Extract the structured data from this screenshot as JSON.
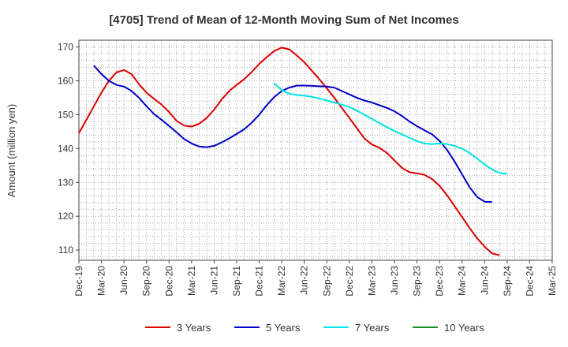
{
  "chart_data": {
    "type": "line",
    "title": "[4705]  Trend of Mean of 12-Month Moving Sum of Net Incomes",
    "xlabel": "",
    "ylabel": "Amount (million yen)",
    "ylim": [
      107,
      172
    ],
    "yticks": [
      110,
      120,
      130,
      140,
      150,
      160,
      170
    ],
    "xlim": [
      "Dec-19",
      "Mar-25"
    ],
    "xticks": [
      "Dec-19",
      "Mar-20",
      "Jun-20",
      "Sep-20",
      "Dec-20",
      "Mar-21",
      "Jun-21",
      "Sep-21",
      "Dec-21",
      "Mar-22",
      "Jun-22",
      "Sep-22",
      "Dec-22",
      "Mar-23",
      "Jun-23",
      "Sep-23",
      "Dec-23",
      "Mar-24",
      "Jun-24",
      "Sep-24",
      "Dec-24",
      "Mar-25"
    ],
    "grid": true,
    "legend_position": "bottom",
    "series": [
      {
        "name": "3 Years",
        "color": "#dd0000",
        "points": [
          [
            "Dec-19",
            144.5
          ],
          [
            "Jan-20",
            148.5
          ],
          [
            "Feb-20",
            152.5
          ],
          [
            "Mar-20",
            156.5
          ],
          [
            "Apr-20",
            160
          ],
          [
            "May-20",
            162.5
          ],
          [
            "Jun-20",
            163.2
          ],
          [
            "Jul-20",
            162
          ],
          [
            "Aug-20",
            159
          ],
          [
            "Sep-20",
            156.5
          ],
          [
            "Oct-20",
            154.7
          ],
          [
            "Nov-20",
            153
          ],
          [
            "Dec-20",
            150.8
          ],
          [
            "Jan-21",
            148.2
          ],
          [
            "Feb-21",
            146.8
          ],
          [
            "Mar-21",
            146.5
          ],
          [
            "Apr-21",
            147.3
          ],
          [
            "May-21",
            149
          ],
          [
            "Jun-21",
            151.5
          ],
          [
            "Jul-21",
            154.5
          ],
          [
            "Aug-21",
            157
          ],
          [
            "Sep-21",
            158.8
          ],
          [
            "Oct-21",
            160.5
          ],
          [
            "Nov-21",
            162.6
          ],
          [
            "Dec-21",
            165
          ],
          [
            "Jan-22",
            167
          ],
          [
            "Feb-22",
            168.8
          ],
          [
            "Mar-22",
            169.8
          ],
          [
            "Apr-22",
            169.3
          ],
          [
            "May-22",
            167.5
          ],
          [
            "Jun-22",
            165.5
          ],
          [
            "Jul-22",
            163
          ],
          [
            "Aug-22",
            160.5
          ],
          [
            "Sep-22",
            157.8
          ],
          [
            "Oct-22",
            155
          ],
          [
            "Nov-22",
            152
          ],
          [
            "Dec-22",
            149
          ],
          [
            "Jan-23",
            146
          ],
          [
            "Feb-23",
            143
          ],
          [
            "Mar-23",
            141.2
          ],
          [
            "Apr-23",
            140.2
          ],
          [
            "May-23",
            138.7
          ],
          [
            "Jun-23",
            136.5
          ],
          [
            "Jul-23",
            134.3
          ],
          [
            "Aug-23",
            133
          ],
          [
            "Sep-23",
            132.7
          ],
          [
            "Oct-23",
            132.2
          ],
          [
            "Nov-23",
            131
          ],
          [
            "Dec-23",
            129
          ],
          [
            "Jan-24",
            126.2
          ],
          [
            "Feb-24",
            123
          ],
          [
            "Mar-24",
            119.8
          ],
          [
            "Apr-24",
            116.5
          ],
          [
            "May-24",
            113.5
          ],
          [
            "Jun-24",
            111
          ],
          [
            "Jul-24",
            109
          ],
          [
            "Aug-24",
            108.5
          ]
        ]
      },
      {
        "name": "5 Years",
        "color": "#0000cc",
        "points": [
          [
            "Feb-20",
            164.5
          ],
          [
            "Mar-20",
            162
          ],
          [
            "Apr-20",
            160
          ],
          [
            "May-20",
            158.8
          ],
          [
            "Jun-20",
            158.3
          ],
          [
            "Jul-20",
            157
          ],
          [
            "Aug-20",
            155
          ],
          [
            "Sep-20",
            152.5
          ],
          [
            "Oct-20",
            150.2
          ],
          [
            "Nov-20",
            148.5
          ],
          [
            "Dec-20",
            146.7
          ],
          [
            "Jan-21",
            144.8
          ],
          [
            "Feb-21",
            142.8
          ],
          [
            "Mar-21",
            141.5
          ],
          [
            "Apr-21",
            140.6
          ],
          [
            "May-21",
            140.4
          ],
          [
            "Jun-21",
            140.8
          ],
          [
            "Jul-21",
            141.8
          ],
          [
            "Aug-21",
            143
          ],
          [
            "Sep-21",
            144.3
          ],
          [
            "Oct-21",
            145.7
          ],
          [
            "Nov-21",
            147.6
          ],
          [
            "Dec-21",
            150
          ],
          [
            "Jan-22",
            152.8
          ],
          [
            "Feb-22",
            155.2
          ],
          [
            "Mar-22",
            157
          ],
          [
            "Apr-22",
            158
          ],
          [
            "May-22",
            158.6
          ],
          [
            "Jun-22",
            158.6
          ],
          [
            "Jul-22",
            158.5
          ],
          [
            "Aug-22",
            158.4
          ],
          [
            "Sep-22",
            158.3
          ],
          [
            "Oct-22",
            158
          ],
          [
            "Nov-22",
            157
          ],
          [
            "Dec-22",
            156
          ],
          [
            "Jan-23",
            155
          ],
          [
            "Feb-23",
            154.2
          ],
          [
            "Mar-23",
            153.6
          ],
          [
            "Apr-23",
            152.8
          ],
          [
            "May-23",
            152
          ],
          [
            "Jun-23",
            151
          ],
          [
            "Jul-23",
            149.6
          ],
          [
            "Aug-23",
            148
          ],
          [
            "Sep-23",
            146.6
          ],
          [
            "Oct-23",
            145.4
          ],
          [
            "Nov-23",
            144.2
          ],
          [
            "Dec-23",
            142.3
          ],
          [
            "Jan-24",
            139.6
          ],
          [
            "Feb-24",
            136.2
          ],
          [
            "Mar-24",
            132.4
          ],
          [
            "Apr-24",
            128.6
          ],
          [
            "May-24",
            125.7
          ],
          [
            "Jun-24",
            124.3
          ],
          [
            "Jul-24",
            124.2
          ]
        ]
      },
      {
        "name": "7 Years",
        "color": "#00e5e5",
        "points": [
          [
            "Feb-22",
            159.2
          ],
          [
            "Mar-22",
            157.3
          ],
          [
            "Apr-22",
            156.2
          ],
          [
            "May-22",
            155.8
          ],
          [
            "Jun-22",
            155.6
          ],
          [
            "Jul-22",
            155.3
          ],
          [
            "Aug-22",
            154.8
          ],
          [
            "Sep-22",
            154.2
          ],
          [
            "Oct-22",
            153.6
          ],
          [
            "Nov-22",
            153
          ],
          [
            "Dec-22",
            152.3
          ],
          [
            "Jan-23",
            151.2
          ],
          [
            "Feb-23",
            150
          ],
          [
            "Mar-23",
            148.8
          ],
          [
            "Apr-23",
            147.5
          ],
          [
            "May-23",
            146.3
          ],
          [
            "Jun-23",
            145.2
          ],
          [
            "Jul-23",
            144.2
          ],
          [
            "Aug-23",
            143.2
          ],
          [
            "Sep-23",
            142.2
          ],
          [
            "Oct-23",
            141.5
          ],
          [
            "Nov-23",
            141.3
          ],
          [
            "Dec-23",
            141.5
          ],
          [
            "Jan-24",
            141.3
          ],
          [
            "Feb-24",
            140.8
          ],
          [
            "Mar-24",
            140
          ],
          [
            "Apr-24",
            138.7
          ],
          [
            "May-24",
            137
          ],
          [
            "Jun-24",
            135.3
          ],
          [
            "Jul-24",
            133.8
          ],
          [
            "Aug-24",
            132.8
          ],
          [
            "Sep-24",
            132.5
          ]
        ]
      },
      {
        "name": "10 Years",
        "color": "#228b22",
        "points": []
      }
    ]
  }
}
